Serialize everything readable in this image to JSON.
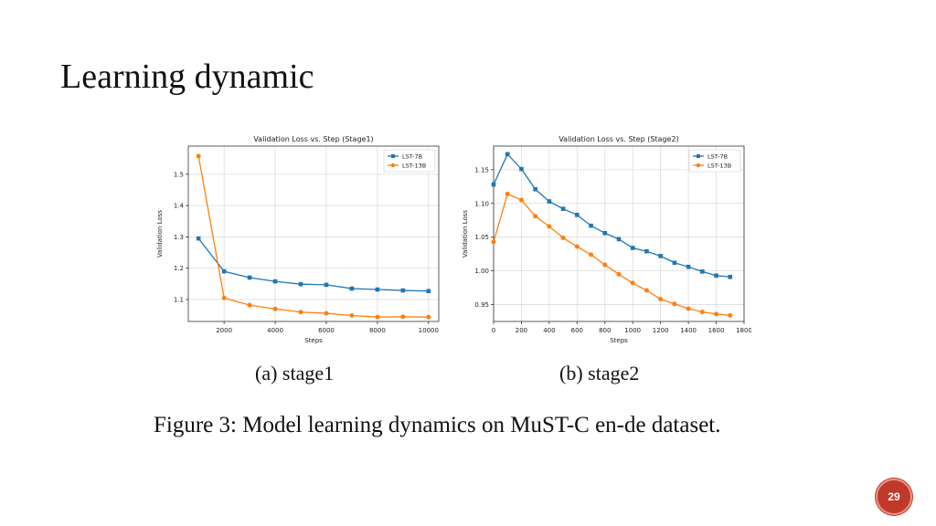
{
  "slide": {
    "title": "Learning dynamic",
    "subcaptions": [
      "(a) stage1",
      "(b) stage2"
    ],
    "figure_caption": "Figure 3: Model learning dynamics on MuST-C en-de dataset.",
    "page_number": "29"
  },
  "colors": {
    "lst7b": "#1f77b4",
    "lst13b": "#ff7f0e",
    "badge": "#c0392b"
  },
  "chart_data": [
    {
      "type": "line",
      "title": "Validation Loss vs. Step (Stage1)",
      "xlabel": "Steps",
      "ylabel": "Validation Loss",
      "x": [
        1000,
        2000,
        3000,
        4000,
        5000,
        6000,
        7000,
        8000,
        9000,
        10000
      ],
      "xlim": [
        600,
        10400
      ],
      "ylim": [
        1.03,
        1.59
      ],
      "xticks": [
        2000,
        4000,
        6000,
        8000,
        10000
      ],
      "yticks": [
        1.1,
        1.2,
        1.3,
        1.4,
        1.5
      ],
      "xtick_labels": [
        "2000",
        "4000",
        "6000",
        "8000",
        "10000"
      ],
      "ytick_labels": [
        "1.1",
        "1.2",
        "1.3",
        "1.4",
        "1.5"
      ],
      "grid": true,
      "legend": "top-right",
      "series": [
        {
          "name": "LST-7B",
          "marker": "square",
          "values": [
            1.295,
            1.19,
            1.17,
            1.158,
            1.149,
            1.147,
            1.135,
            1.132,
            1.129,
            1.127
          ]
        },
        {
          "name": "LST-13B",
          "marker": "circle",
          "values": [
            1.558,
            1.105,
            1.082,
            1.07,
            1.06,
            1.056,
            1.049,
            1.044,
            1.045,
            1.044
          ]
        }
      ]
    },
    {
      "type": "line",
      "title": "Validation Loss vs. Step (Stage2)",
      "xlabel": "Steps",
      "ylabel": "Validation Loss",
      "x": [
        0,
        100,
        200,
        300,
        400,
        500,
        600,
        700,
        800,
        900,
        1000,
        1100,
        1200,
        1300,
        1400,
        1500,
        1600,
        1700
      ],
      "xlim": [
        0,
        1800
      ],
      "ylim": [
        0.925,
        1.185
      ],
      "xticks": [
        0,
        200,
        400,
        600,
        800,
        1000,
        1200,
        1400,
        1600,
        1800
      ],
      "yticks": [
        0.95,
        1.0,
        1.05,
        1.1,
        1.15
      ],
      "xtick_labels": [
        "0",
        "200",
        "400",
        "600",
        "800",
        "1000",
        "1200",
        "1400",
        "1600",
        "1800"
      ],
      "ytick_labels": [
        "0.95",
        "1.00",
        "1.05",
        "1.10",
        "1.15"
      ],
      "grid": true,
      "legend": "top-right",
      "series": [
        {
          "name": "LST-7B",
          "marker": "square",
          "values": [
            1.128,
            1.173,
            1.151,
            1.121,
            1.103,
            1.092,
            1.083,
            1.067,
            1.056,
            1.047,
            1.034,
            1.029,
            1.022,
            1.012,
            1.006,
            0.999,
            0.993,
            0.991
          ]
        },
        {
          "name": "LST-13B",
          "marker": "circle",
          "values": [
            1.043,
            1.114,
            1.105,
            1.081,
            1.066,
            1.049,
            1.036,
            1.024,
            1.009,
            0.995,
            0.982,
            0.971,
            0.958,
            0.951,
            0.944,
            0.939,
            0.936,
            0.934
          ]
        }
      ]
    }
  ]
}
